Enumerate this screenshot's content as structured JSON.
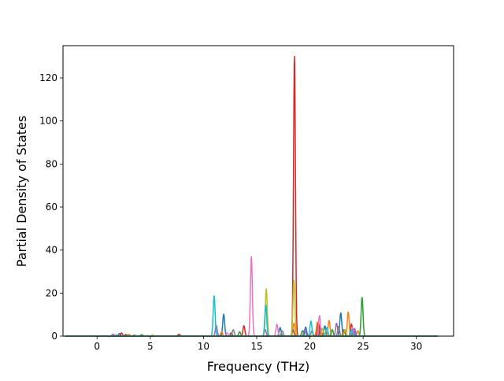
{
  "chart_data": {
    "type": "line",
    "title": "",
    "xlabel": "Frequency (THz)",
    "ylabel": "Partial Density of States",
    "xlim": [
      -3.2,
      33.5
    ],
    "ylim": [
      0,
      135
    ],
    "xticks": [
      0,
      5,
      10,
      15,
      20,
      25,
      30
    ],
    "yticks": [
      0,
      20,
      40,
      60,
      80,
      100,
      120
    ],
    "grid": false,
    "legend": "none",
    "x_range": [
      -3,
      32
    ],
    "series": [
      {
        "color": "#1f77b4",
        "peaks": [
          [
            2.1,
            1.2
          ],
          [
            11.9,
            10.2
          ],
          [
            17.2,
            4.0
          ],
          [
            19.6,
            4.2
          ],
          [
            21.4,
            4.8
          ],
          [
            22.9,
            10.8
          ],
          [
            24.1,
            3.0
          ]
        ]
      },
      {
        "color": "#ff7f0e",
        "peaks": [
          [
            3.0,
            0.8
          ],
          [
            11.7,
            2.0
          ],
          [
            18.5,
            6.0
          ],
          [
            20.7,
            6.5
          ],
          [
            21.8,
            7.2
          ],
          [
            23.6,
            11.2
          ],
          [
            24.5,
            2.5
          ]
        ]
      },
      {
        "color": "#2ca02c",
        "peaks": [
          [
            4.2,
            0.7
          ],
          [
            13.4,
            2.0
          ],
          [
            19.3,
            2.5
          ],
          [
            22.1,
            3.0
          ],
          [
            24.9,
            18.0
          ]
        ]
      },
      {
        "color": "#d62728",
        "peaks": [
          [
            2.3,
            1.5
          ],
          [
            7.7,
            0.9
          ],
          [
            13.8,
            4.8
          ],
          [
            18.55,
            130.0
          ],
          [
            20.8,
            6.2
          ],
          [
            23.9,
            5.6
          ]
        ]
      },
      {
        "color": "#9467bd",
        "peaks": [
          [
            1.5,
            0.9
          ],
          [
            11.2,
            5.0
          ],
          [
            15.8,
            3.0
          ],
          [
            19.5,
            3.0
          ],
          [
            22.5,
            6.0
          ],
          [
            24.2,
            3.5
          ]
        ]
      },
      {
        "color": "#8c564b",
        "peaks": [
          [
            2.7,
            0.8
          ],
          [
            12.6,
            1.5
          ],
          [
            18.4,
            3.0
          ],
          [
            21.0,
            4.0
          ],
          [
            23.2,
            3.0
          ]
        ]
      },
      {
        "color": "#e377c2",
        "peaks": [
          [
            1.8,
            0.6
          ],
          [
            12.2,
            1.5
          ],
          [
            14.5,
            37.0
          ],
          [
            16.9,
            5.5
          ],
          [
            20.9,
            9.5
          ],
          [
            24.0,
            4.0
          ]
        ]
      },
      {
        "color": "#7f7f7f",
        "peaks": [
          [
            3.5,
            0.5
          ],
          [
            12.8,
            3.0
          ],
          [
            17.4,
            2.5
          ],
          [
            20.2,
            2.5
          ],
          [
            22.7,
            4.5
          ]
        ]
      },
      {
        "color": "#bcbd22",
        "peaks": [
          [
            5.2,
            0.6
          ],
          [
            15.9,
            22.0
          ],
          [
            18.5,
            26.0
          ],
          [
            21.2,
            3.5
          ],
          [
            23.3,
            3.0
          ]
        ]
      },
      {
        "color": "#17becf",
        "peaks": [
          [
            11.0,
            18.7
          ],
          [
            15.85,
            14.5
          ],
          [
            20.1,
            7.0
          ],
          [
            21.6,
            4.0
          ],
          [
            23.9,
            3.0
          ]
        ]
      }
    ]
  }
}
